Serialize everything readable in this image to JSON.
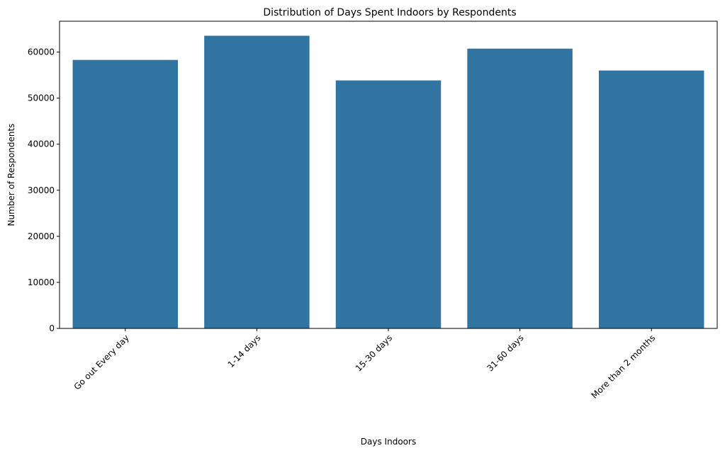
{
  "chart_data": {
    "type": "bar",
    "title": "Distribution of Days Spent Indoors by Respondents",
    "xlabel": "Days Indoors",
    "ylabel": "Number of Respondents",
    "categories": [
      "Go out Every day",
      "1-14 days",
      "15-30 days",
      "31-60 days",
      "More than 2 months"
    ],
    "values": [
      58300,
      63550,
      53850,
      60750,
      56000
    ],
    "ylim": [
      0,
      66700
    ],
    "yticks": [
      0,
      10000,
      20000,
      30000,
      40000,
      50000,
      60000
    ],
    "ytick_labels": [
      "0",
      "10000",
      "20000",
      "30000",
      "40000",
      "50000",
      "60000"
    ],
    "bar_color": "#3274a1",
    "grid": false,
    "legend": "none"
  }
}
